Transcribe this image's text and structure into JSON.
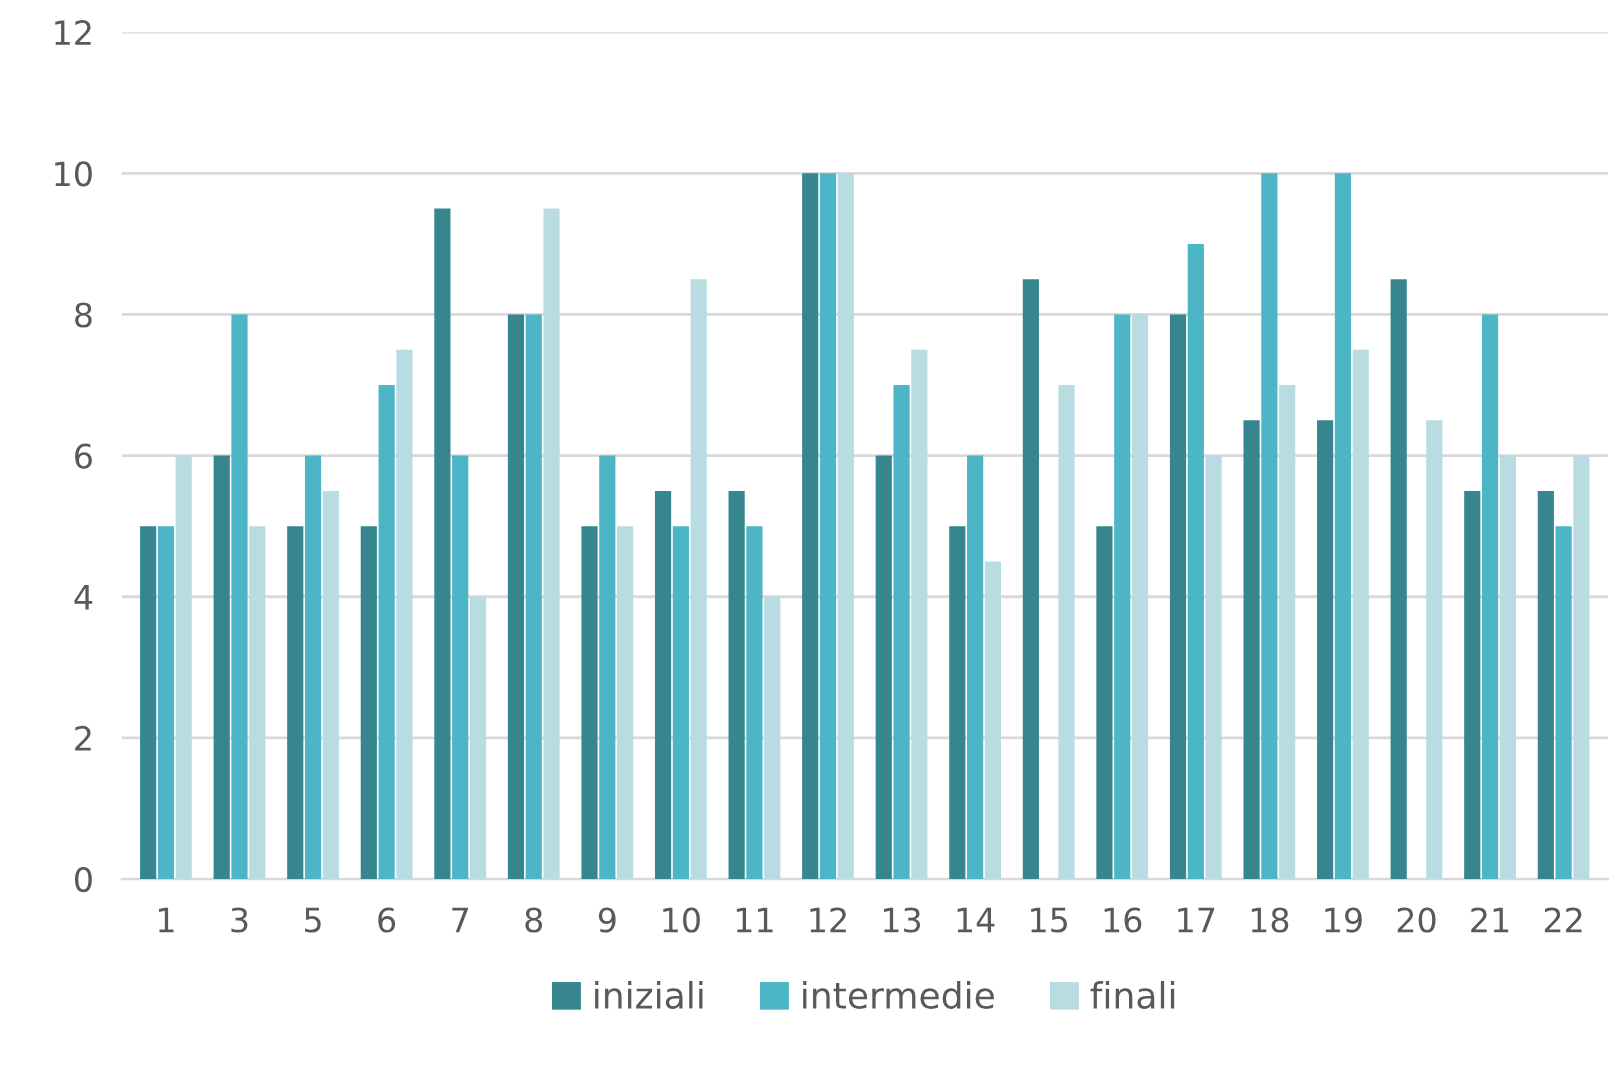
{
  "chart_data": {
    "type": "bar",
    "categories": [
      "1",
      "3",
      "5",
      "6",
      "7",
      "8",
      "9",
      "10",
      "11",
      "12",
      "13",
      "14",
      "15",
      "16",
      "17",
      "18",
      "19",
      "20",
      "21",
      "22"
    ],
    "series": [
      {
        "name": "iniziali",
        "color": "#37868f",
        "values": [
          5,
          6,
          5,
          5,
          9.5,
          8,
          5,
          5.5,
          5.5,
          10,
          6,
          5,
          8.5,
          5,
          8,
          6.5,
          6.5,
          8.5,
          5.5,
          5.5
        ]
      },
      {
        "name": "intermedie",
        "color": "#4cb6c6",
        "values": [
          5,
          8,
          6,
          7,
          6,
          8,
          6,
          5,
          5,
          10,
          7,
          6,
          null,
          8,
          9,
          10,
          10,
          null,
          8,
          5
        ]
      },
      {
        "name": "finali",
        "color": "#b9dce2",
        "values": [
          6,
          5,
          5.5,
          7.5,
          4,
          9.5,
          5,
          8.5,
          4,
          10,
          7.5,
          4.5,
          7,
          8,
          6,
          7,
          7.5,
          6.5,
          6,
          6
        ]
      }
    ],
    "ylim": [
      0,
      12
    ],
    "yticks": [
      0,
      2,
      4,
      6,
      8,
      10,
      12
    ],
    "grid": "y",
    "legend": "bottom"
  }
}
